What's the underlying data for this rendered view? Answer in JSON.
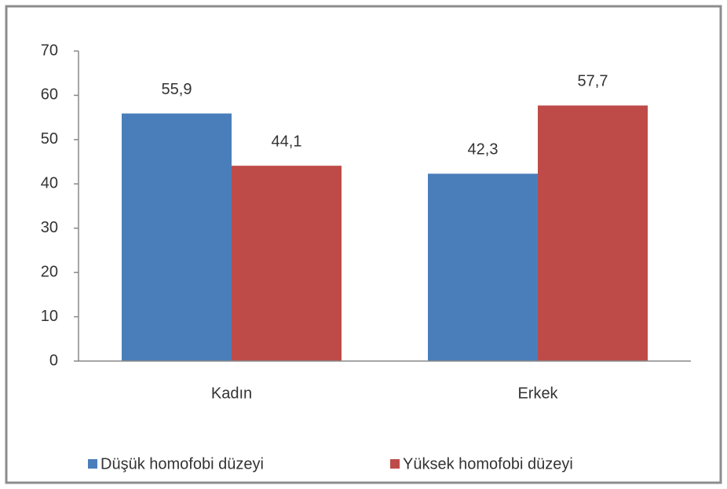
{
  "chart_data": {
    "type": "bar",
    "categories": [
      "Kadın",
      "Erkek"
    ],
    "series": [
      {
        "name": "Düşük homofobi düzeyi",
        "color": "#4a7ebb",
        "values": [
          55.9,
          42.3
        ],
        "value_labels": [
          "55,9",
          "42,3"
        ]
      },
      {
        "name": "Yüksek homofobi düzeyi",
        "color": "#be4b48",
        "values": [
          44.1,
          57.7
        ],
        "value_labels": [
          "44,1",
          "57,7"
        ]
      }
    ],
    "ylim": [
      0,
      70
    ],
    "yticks": [
      0,
      10,
      20,
      30,
      40,
      50,
      60,
      70
    ],
    "grid": false,
    "legend": "bottom"
  }
}
